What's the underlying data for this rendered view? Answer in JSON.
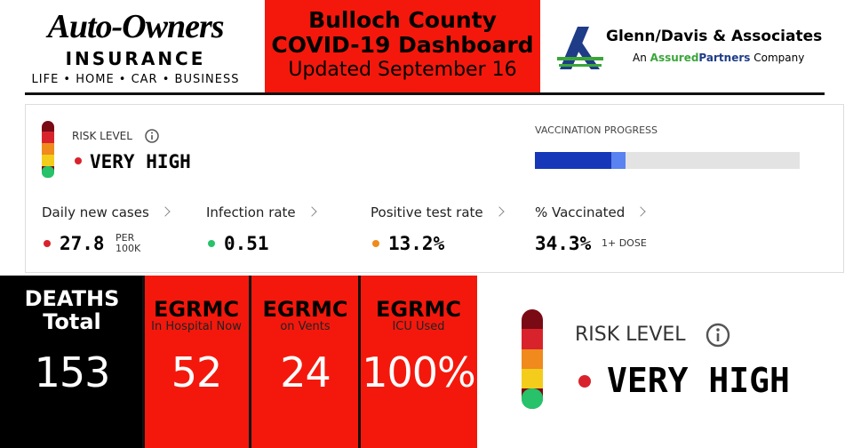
{
  "header": {
    "left_logo": {
      "name": "Auto-Owners",
      "subname": "INSURANCE",
      "tagline": "LIFE • HOME • CAR • BUSINESS"
    },
    "title": {
      "line1": "Bulloch County",
      "line2": "COVID-19 Dashboard",
      "updated": "Updated September 16"
    },
    "right_logo": {
      "name": "Glenn/Davis & Associates",
      "tagline_start": "An",
      "brand_first": "Assured",
      "brand_second": "Partners",
      "tagline_end": "Company"
    }
  },
  "risk_panel": {
    "risk_label": "RISK LEVEL",
    "risk_value": "VERY HIGH",
    "vaccination_label": "VACCINATION PROGRESS",
    "vaccination_segments": [
      29,
      34.3
    ],
    "vaccination_max": 100,
    "metrics": [
      {
        "label": "Daily new cases",
        "value": "27.8",
        "unit_line1": "PER",
        "unit_line2": "100K"
      },
      {
        "label": "Infection rate",
        "value": "0.51"
      },
      {
        "label": "Positive test rate",
        "value": "13.2%"
      },
      {
        "label": "% Vaccinated",
        "value": "34.3%",
        "unit_line1": "1+ DOSE"
      }
    ]
  },
  "stats": [
    {
      "title": "DEATHS",
      "subtitle": "Total",
      "value": "153"
    },
    {
      "title": "EGRMC",
      "subtitle": "In Hospital Now",
      "value": "52"
    },
    {
      "title": "EGRMC",
      "subtitle": "on Vents",
      "value": "24"
    },
    {
      "title": "EGRMC",
      "subtitle": "ICU Used",
      "value": "100%"
    }
  ],
  "big_risk": {
    "label": "RISK LEVEL",
    "value": "VERY HIGH"
  }
}
